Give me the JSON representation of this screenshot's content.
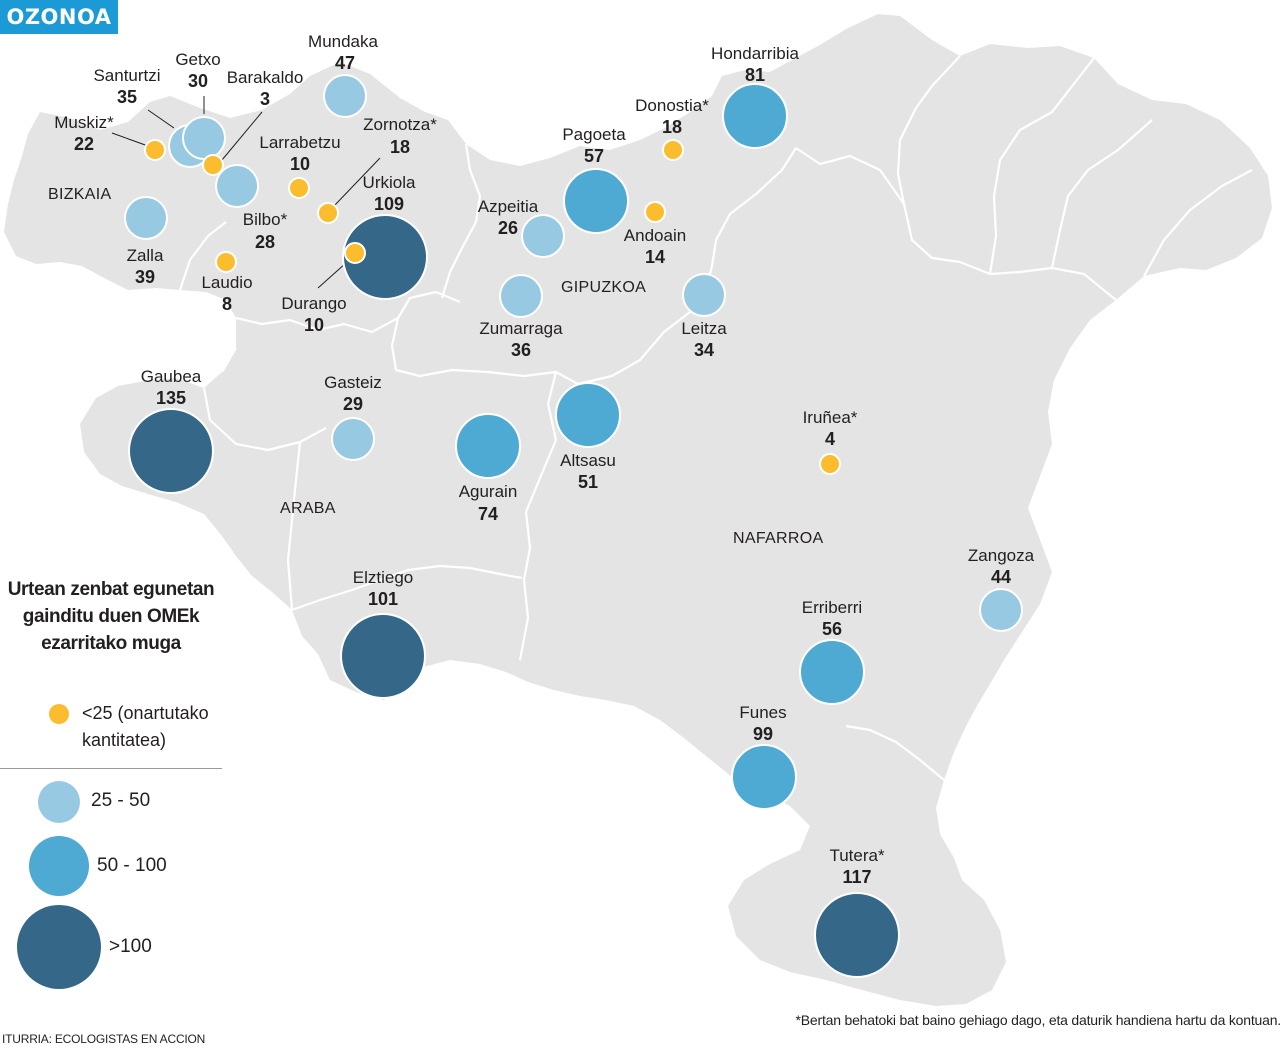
{
  "tag": "OZONOA",
  "colors": {
    "land": "#e4e4e4",
    "border": "#ffffff",
    "low": "#fbbd2e",
    "mid_light": "#97c9e2",
    "mid": "#4ea9d3",
    "high": "#356888"
  },
  "provinces": [
    "BIZKAIA",
    "GIPUZKOA",
    "ARABA",
    "NAFARROA"
  ],
  "stations": [
    {
      "name": "Mundaka",
      "value": "47",
      "category": "25-50"
    },
    {
      "name": "Santurtzi",
      "value": "35",
      "category": "25-50"
    },
    {
      "name": "Getxo",
      "value": "30",
      "category": "25-50"
    },
    {
      "name": "Barakaldo",
      "value": "3",
      "category": "<25"
    },
    {
      "name": "Muskiz*",
      "value": "22",
      "category": "<25"
    },
    {
      "name": "Larrabetzu",
      "value": "10",
      "category": "<25"
    },
    {
      "name": "Zornotza*",
      "value": "18",
      "category": "<25"
    },
    {
      "name": "Urkiola",
      "value": "109",
      "category": ">100"
    },
    {
      "name": "Bilbo*",
      "value": "28",
      "category": "25-50"
    },
    {
      "name": "Zalla",
      "value": "39",
      "category": "25-50"
    },
    {
      "name": "Laudio",
      "value": "8",
      "category": "<25"
    },
    {
      "name": "Durango",
      "value": "10",
      "category": "<25"
    },
    {
      "name": "Hondarribia",
      "value": "81",
      "category": "50-100"
    },
    {
      "name": "Donostia*",
      "value": "18",
      "category": "<25"
    },
    {
      "name": "Pagoeta",
      "value": "57",
      "category": "50-100"
    },
    {
      "name": "Azpeitia",
      "value": "26",
      "category": "25-50"
    },
    {
      "name": "Andoain",
      "value": "14",
      "category": "<25"
    },
    {
      "name": "Zumarraga",
      "value": "36",
      "category": "25-50"
    },
    {
      "name": "Leitza",
      "value": "34",
      "category": "25-50"
    },
    {
      "name": "Gaubea",
      "value": "135",
      "category": ">100"
    },
    {
      "name": "Gasteiz",
      "value": "29",
      "category": "25-50"
    },
    {
      "name": "Agurain",
      "value": "74",
      "category": "50-100"
    },
    {
      "name": "Altsasu",
      "value": "51",
      "category": "50-100"
    },
    {
      "name": "Iruñea*",
      "value": "4",
      "category": "<25"
    },
    {
      "name": "Elztiego",
      "value": "101",
      "category": ">100"
    },
    {
      "name": "Zangoza",
      "value": "44",
      "category": "25-50"
    },
    {
      "name": "Erriberri",
      "value": "56",
      "category": "50-100"
    },
    {
      "name": "Funes",
      "value": "99",
      "category": "50-100"
    },
    {
      "name": "Tutera*",
      "value": "117",
      "category": ">100"
    }
  ],
  "legend": {
    "title": "Urtean zenbat egunetan gainditu duen OMEk ezarritako muga",
    "low_label": "<25 (onartutako kantitatea)",
    "ranges": [
      "25 - 50",
      "50 - 100",
      ">100"
    ]
  },
  "source": "ITURRIA: ECOLOGISTAS EN ACCION",
  "footnote": "*Bertan behatoki bat baino gehiago dago, eta daturik handiena hartu da kontuan."
}
